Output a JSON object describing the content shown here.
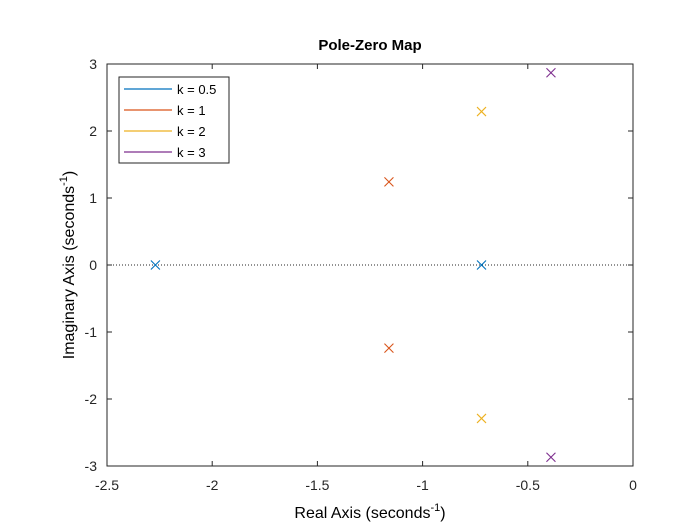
{
  "chart_data": {
    "type": "scatter",
    "title": "Pole-Zero Map",
    "xlabel": "Real Axis (seconds",
    "ylabel": "Imaginary Axis (seconds",
    "label_unit_exponent": "-1",
    "label_close": ")",
    "xlim": [
      -2.5,
      0
    ],
    "ylim": [
      -3,
      3
    ],
    "xticks": [
      -2.5,
      -2,
      -1.5,
      -1,
      -0.5,
      0
    ],
    "xtick_labels": [
      "-2.5",
      "-2",
      "-1.5",
      "-1",
      "-0.5",
      "0"
    ],
    "yticks": [
      -3,
      -2,
      -1,
      0,
      1,
      2,
      3
    ],
    "ytick_labels": [
      "-3",
      "-2",
      "-1",
      "0",
      "1",
      "2",
      "3"
    ],
    "grid": false,
    "zero_line": true,
    "legend_placement": "top-left",
    "marker": "x",
    "series": [
      {
        "name": "k = 0.5",
        "color": "#0072BD",
        "points": [
          [
            -2.27,
            0
          ],
          [
            -0.72,
            0
          ]
        ]
      },
      {
        "name": "k = 1",
        "color": "#D95319",
        "points": [
          [
            -1.16,
            1.24
          ],
          [
            -1.16,
            -1.24
          ]
        ]
      },
      {
        "name": "k = 2",
        "color": "#EDB120",
        "points": [
          [
            -0.72,
            2.29
          ],
          [
            -0.72,
            -2.29
          ]
        ]
      },
      {
        "name": "k = 3",
        "color": "#7E2F8E",
        "points": [
          [
            -0.39,
            2.87
          ],
          [
            -0.39,
            -2.87
          ]
        ]
      }
    ]
  }
}
